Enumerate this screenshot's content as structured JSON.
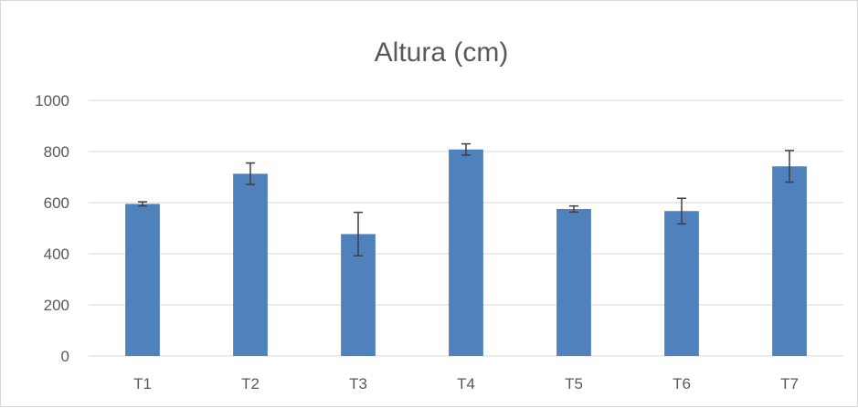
{
  "chart_data": {
    "type": "bar",
    "title": "Altura (cm)",
    "xlabel": "",
    "ylabel": "",
    "categories": [
      "T1",
      "T2",
      "T3",
      "T4",
      "T5",
      "T6",
      "T7"
    ],
    "values": [
      595,
      713,
      477,
      808,
      575,
      567,
      742
    ],
    "error_bars": [
      8,
      42,
      85,
      22,
      12,
      50,
      62
    ],
    "ylim": [
      0,
      1000
    ],
    "yticks": [
      0,
      200,
      400,
      600,
      800,
      1000
    ],
    "ytick_labels": [
      "0",
      "200",
      "400",
      "600",
      "800",
      "1000"
    ],
    "grid": true,
    "legend": "none",
    "colors": {
      "bar": "#4f81bd",
      "grid": "#d9d9d9",
      "text": "#595959",
      "error": "#404040"
    }
  }
}
